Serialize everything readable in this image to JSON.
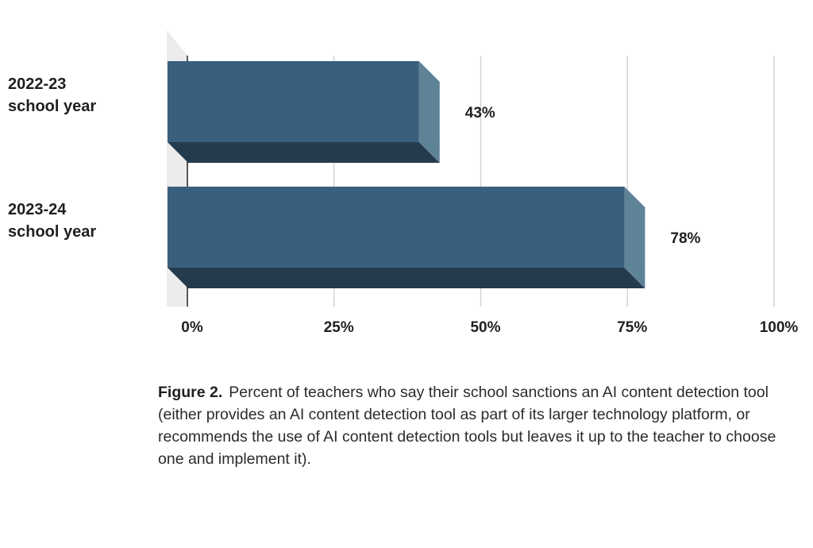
{
  "chart_data": {
    "type": "bar",
    "orientation": "horizontal",
    "categories": [
      "2022-23 school year",
      "2023-24 school year"
    ],
    "category_lines": [
      [
        "2022-23",
        "school year"
      ],
      [
        "2023-24",
        "school year"
      ]
    ],
    "values": [
      43,
      78
    ],
    "data_labels": [
      "43%",
      "78%"
    ],
    "xlim": [
      0,
      100
    ],
    "xticks": [
      0,
      25,
      50,
      75,
      100
    ],
    "xtick_labels": [
      "0%",
      "25%",
      "50%",
      "75%",
      "100%"
    ],
    "grid": true,
    "style": "3d",
    "colors": {
      "bar_front": "#3a5f7d",
      "bar_bottom": "#243b4e",
      "bar_side": "#5e8296",
      "back_wall": "#ececec",
      "grid": "#cfcfcf",
      "axis": "#222222"
    }
  },
  "caption": {
    "figure_label": "Figure 2.",
    "text": "Percent of teachers who say their school sanctions an AI content detection tool (either provides an AI content detection tool as part of its larger technology platform, or recommends the use of AI content detection tools but leaves it up to the teacher to choose one and implement it)."
  }
}
